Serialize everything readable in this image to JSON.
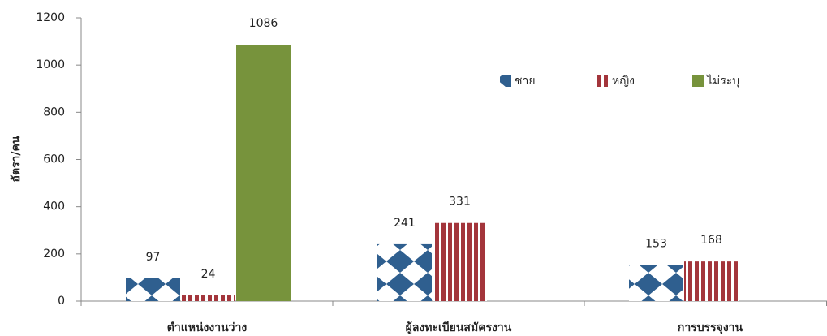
{
  "chart_data": {
    "type": "bar",
    "y_label": "อัตรา/คน",
    "categories": [
      "ตำแหน่งงานว่าง",
      "ผู้ลงทะเบียนสมัครงาน",
      "การบรรจุงาน"
    ],
    "series": [
      {
        "name": "ชาย",
        "color": "#2f5f8f",
        "pattern": "diamond",
        "values": [
          97,
          241,
          153
        ]
      },
      {
        "name": "หญิง",
        "color": "#a3353b",
        "pattern": "stripes",
        "values": [
          24,
          331,
          168
        ]
      },
      {
        "name": "ไม่ระบุ",
        "color": "#77933c",
        "pattern": "solid",
        "values": [
          1086,
          null,
          null
        ]
      }
    ],
    "ylim": [
      0,
      1200
    ],
    "yticks": [
      0,
      200,
      400,
      600,
      800,
      1000,
      1200
    ],
    "legend": "upper right"
  }
}
